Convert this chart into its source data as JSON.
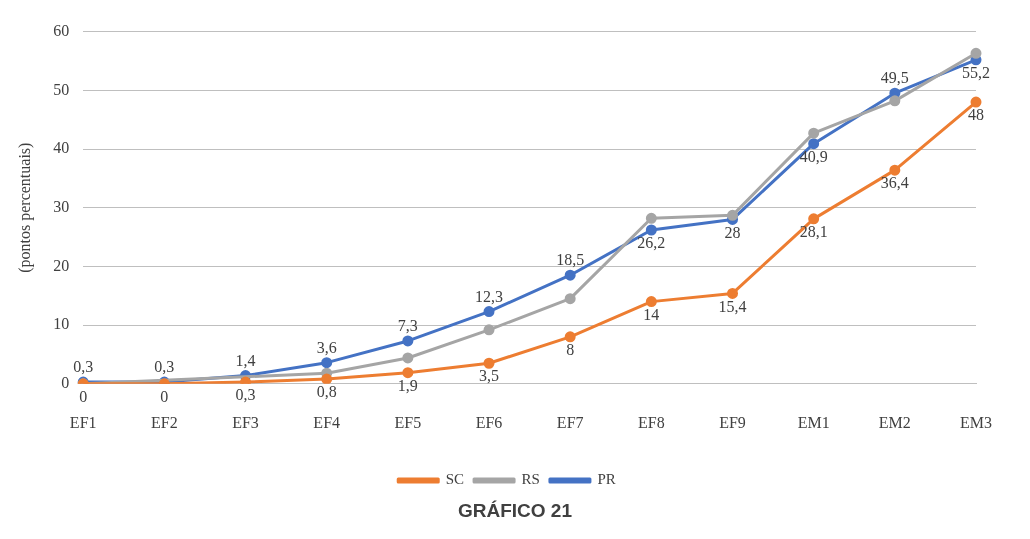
{
  "chart_data": {
    "type": "line",
    "title": "GRÁFICO 21",
    "ylabel": "(pontos percentuais)",
    "categories": [
      "EF1",
      "EF2",
      "EF3",
      "EF4",
      "EF5",
      "EF6",
      "EF7",
      "EF8",
      "EF9",
      "EM1",
      "EM2",
      "EM3"
    ],
    "series": [
      {
        "name": "SC",
        "color": "#ed7d31",
        "values": [
          0,
          0,
          0.3,
          0.8,
          1.9,
          3.5,
          8,
          14,
          15.4,
          28.1,
          36.4,
          48
        ],
        "value_labels": [
          "0",
          "0",
          "0,3",
          "0,8",
          "1,9",
          "3,5",
          "8",
          "14",
          "15,4",
          "28,1",
          "36,4",
          "48"
        ]
      },
      {
        "name": "RS",
        "color": "#a5a5a5",
        "values": [
          0,
          null,
          null,
          1.8,
          4.4,
          9.2,
          14.5,
          28.2,
          28.7,
          42.7,
          48.2,
          56.3
        ]
      },
      {
        "name": "PR",
        "color": "#4472c4",
        "values": [
          0.3,
          0.3,
          1.4,
          3.6,
          7.3,
          12.3,
          18.5,
          26.2,
          28,
          40.9,
          49.5,
          55.2
        ],
        "value_labels": [
          "0,3",
          "0,3",
          "1,4",
          "3,6",
          "7,3",
          "12,3",
          "18,5",
          "26,2",
          "28",
          "40,9",
          "49,5",
          "55,2"
        ]
      }
    ],
    "ylim": [
      0,
      60
    ],
    "yticks": [
      0,
      10,
      20,
      30,
      40,
      50,
      60
    ],
    "grid": "y",
    "legend": "bottom",
    "marker": "circle",
    "line_style": "solid"
  }
}
